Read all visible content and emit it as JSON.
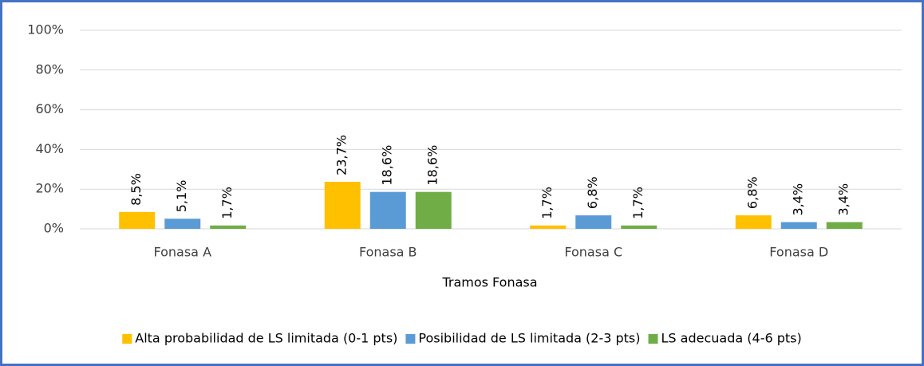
{
  "chart_data": {
    "type": "bar",
    "x_label": "Tramos Fonasa",
    "categories": [
      "Fonasa A",
      "Fonasa B",
      "Fonasa C",
      "Fonasa D"
    ],
    "series": [
      {
        "name": "Alta probabilidad de LS limitada (0-1 pts)",
        "color": "#FFC000",
        "values": [
          8.5,
          23.7,
          1.7,
          6.8
        ],
        "value_labels": [
          "8,5%",
          "23,7%",
          "1,7%",
          "6,8%"
        ]
      },
      {
        "name": "Posibilidad de LS limitada (2-3 pts)",
        "color": "#5B9BD5",
        "values": [
          5.1,
          18.6,
          6.8,
          3.4
        ],
        "value_labels": [
          "5,1%",
          "18,6%",
          "6,8%",
          "3,4%"
        ]
      },
      {
        "name": "LS adecuada (4-6 pts)",
        "color": "#70AD47",
        "values": [
          1.7,
          18.6,
          1.7,
          3.4
        ],
        "value_labels": [
          "1,7%",
          "18,6%",
          "1,7%",
          "3,4%"
        ]
      }
    ],
    "ylim": [
      0,
      100
    ],
    "yticks": [
      {
        "value": 0,
        "label": "0%"
      },
      {
        "value": 20,
        "label": "20%"
      },
      {
        "value": 40,
        "label": "40%"
      },
      {
        "value": 60,
        "label": "60%"
      },
      {
        "value": 80,
        "label": "80%"
      },
      {
        "value": 100,
        "label": "100%"
      }
    ],
    "grid": true,
    "legend": "bottom"
  }
}
